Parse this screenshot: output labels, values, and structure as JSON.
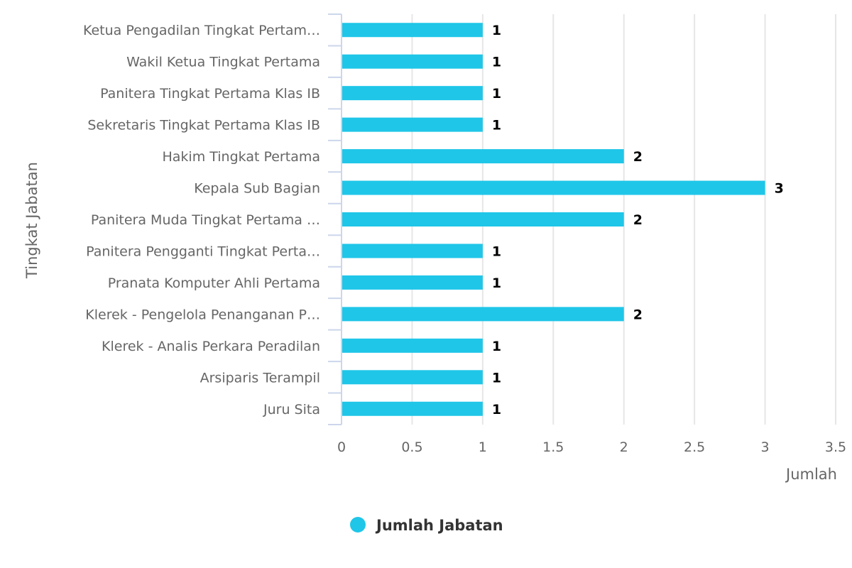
{
  "chart_data": {
    "type": "bar",
    "orientation": "horizontal",
    "categories": [
      "Ketua Pengadilan Tingkat Pertam…",
      "Wakil Ketua Tingkat Pertama",
      "Panitera Tingkat Pertama Klas IB",
      "Sekretaris Tingkat Pertama Klas IB",
      "Hakim Tingkat Pertama",
      "Kepala Sub Bagian",
      "Panitera Muda Tingkat Pertama …",
      "Panitera Pengganti Tingkat Perta…",
      "Pranata Komputer Ahli Pertama",
      "Klerek - Pengelola Penanganan P…",
      "Klerek - Analis Perkara Peradilan",
      "Arsiparis Terampil",
      "Juru Sita"
    ],
    "series": [
      {
        "name": "Jumlah Jabatan",
        "values": [
          1,
          1,
          1,
          1,
          2,
          3,
          2,
          1,
          1,
          2,
          1,
          1,
          1
        ],
        "color": "#1fc6e8"
      }
    ],
    "xlabel": "Tingkat Jabatan",
    "ylabel": "Jumlah",
    "ylim": [
      0,
      3.5
    ],
    "ticks": [
      "0",
      "0.5",
      "1",
      "1.5",
      "2",
      "2.5",
      "3",
      "3.5"
    ],
    "grid": true,
    "data_labels": true,
    "legend_position": "bottom-center"
  }
}
